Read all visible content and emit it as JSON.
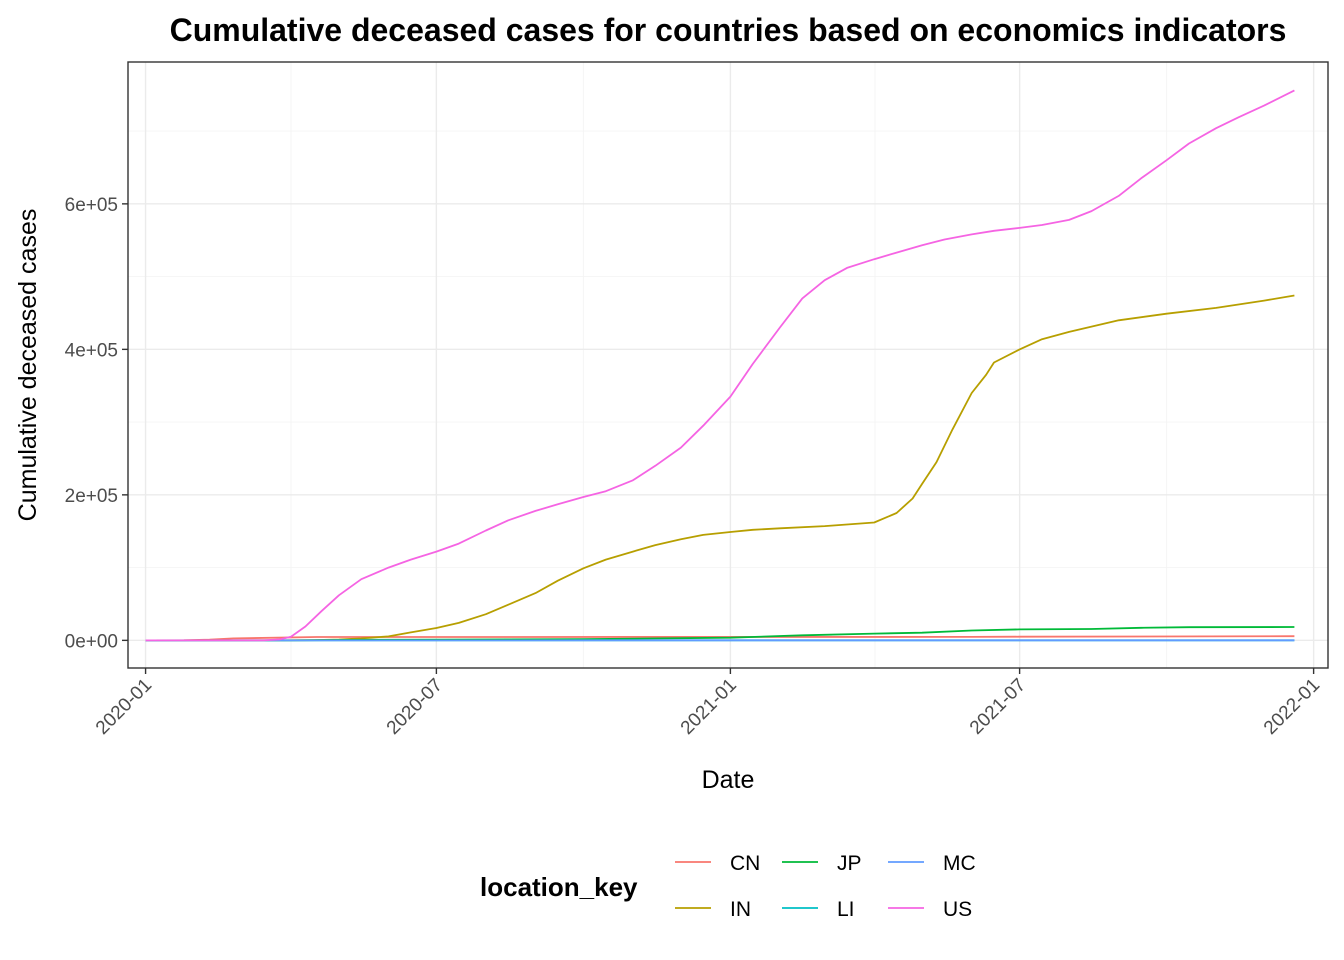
{
  "chart_data": {
    "type": "line",
    "title": "Cumulative deceased cases for countries based on economics indicators",
    "xlabel": "Date",
    "ylabel": "Cumulative deceased cases",
    "x_ticks": [
      "2020-01",
      "2020-07",
      "2021-01",
      "2021-07",
      "2022-01"
    ],
    "y_ticks": [
      {
        "value": 0,
        "label": "0e+00"
      },
      {
        "value": 200000,
        "label": "2e+05"
      },
      {
        "value": 400000,
        "label": "4e+05"
      },
      {
        "value": 600000,
        "label": "6e+05"
      }
    ],
    "xlim": [
      "2019-12-21",
      "2022-01-10"
    ],
    "ylim": [
      -38000,
      795000
    ],
    "grid": true,
    "legend": {
      "title": "location_key",
      "placement": "bottom"
    },
    "series": [
      {
        "name": "CN",
        "color": "#F8766D",
        "points": [
          [
            "2020-01-01",
            0
          ],
          [
            "2020-01-25",
            100
          ],
          [
            "2020-02-10",
            1000
          ],
          [
            "2020-02-25",
            2700
          ],
          [
            "2020-04-17",
            4600
          ],
          [
            "2021-06-01",
            4700
          ],
          [
            "2021-07-01",
            5000
          ],
          [
            "2021-12-20",
            5700
          ]
        ]
      },
      {
        "name": "IN",
        "color": "#B79F00",
        "points": [
          [
            "2020-01-01",
            0
          ],
          [
            "2020-03-25",
            0
          ],
          [
            "2020-04-15",
            400
          ],
          [
            "2020-05-01",
            1200
          ],
          [
            "2020-05-15",
            2700
          ],
          [
            "2020-06-01",
            5400
          ],
          [
            "2020-06-15",
            11000
          ],
          [
            "2020-07-01",
            17000
          ],
          [
            "2020-07-15",
            24000
          ],
          [
            "2020-08-01",
            36000
          ],
          [
            "2020-08-15",
            49000
          ],
          [
            "2020-09-01",
            65000
          ],
          [
            "2020-09-15",
            82000
          ],
          [
            "2020-10-01",
            99000
          ],
          [
            "2020-10-15",
            111000
          ],
          [
            "2020-11-01",
            122000
          ],
          [
            "2020-11-15",
            131000
          ],
          [
            "2020-12-01",
            139000
          ],
          [
            "2020-12-15",
            145000
          ],
          [
            "2021-01-01",
            149000
          ],
          [
            "2021-01-15",
            152000
          ],
          [
            "2021-02-01",
            154000
          ],
          [
            "2021-03-01",
            157000
          ],
          [
            "2021-04-01",
            162000
          ],
          [
            "2021-04-15",
            175000
          ],
          [
            "2021-04-25",
            195000
          ],
          [
            "2021-05-01",
            215000
          ],
          [
            "2021-05-10",
            245000
          ],
          [
            "2021-05-20",
            290000
          ],
          [
            "2021-06-01",
            340000
          ],
          [
            "2021-06-10",
            365000
          ],
          [
            "2021-06-15",
            382000
          ],
          [
            "2021-07-01",
            400000
          ],
          [
            "2021-07-15",
            414000
          ],
          [
            "2021-08-01",
            424000
          ],
          [
            "2021-09-01",
            440000
          ],
          [
            "2021-10-01",
            449000
          ],
          [
            "2021-11-01",
            457000
          ],
          [
            "2021-12-01",
            467000
          ],
          [
            "2021-12-20",
            474000
          ]
        ]
      },
      {
        "name": "JP",
        "color": "#00BA38",
        "points": [
          [
            "2020-01-01",
            0
          ],
          [
            "2020-04-01",
            60
          ],
          [
            "2020-05-15",
            700
          ],
          [
            "2020-07-01",
            1000
          ],
          [
            "2020-10-01",
            1700
          ],
          [
            "2021-01-01",
            3600
          ],
          [
            "2021-02-15",
            7000
          ],
          [
            "2021-04-01",
            9300
          ],
          [
            "2021-05-01",
            10500
          ],
          [
            "2021-06-01",
            13500
          ],
          [
            "2021-07-01",
            15000
          ],
          [
            "2021-08-15",
            15600
          ],
          [
            "2021-09-15",
            17300
          ],
          [
            "2021-10-15",
            18100
          ],
          [
            "2021-12-20",
            18400
          ]
        ]
      },
      {
        "name": "LI",
        "color": "#00BFC4",
        "points": [
          [
            "2020-01-01",
            0
          ],
          [
            "2020-06-01",
            1
          ],
          [
            "2021-01-01",
            50
          ],
          [
            "2021-12-20",
            70
          ]
        ]
      },
      {
        "name": "MC",
        "color": "#619CFF",
        "points": [
          [
            "2020-01-01",
            0
          ],
          [
            "2020-06-01",
            4
          ],
          [
            "2021-01-01",
            20
          ],
          [
            "2021-12-20",
            35
          ]
        ]
      },
      {
        "name": "US",
        "color": "#F564E3",
        "points": [
          [
            "2020-01-01",
            0
          ],
          [
            "2020-03-15",
            50
          ],
          [
            "2020-03-25",
            1300
          ],
          [
            "2020-04-01",
            5000
          ],
          [
            "2020-04-10",
            19000
          ],
          [
            "2020-04-20",
            40000
          ],
          [
            "2020-05-01",
            62000
          ],
          [
            "2020-05-15",
            84000
          ],
          [
            "2020-06-01",
            100000
          ],
          [
            "2020-06-15",
            111000
          ],
          [
            "2020-07-01",
            122000
          ],
          [
            "2020-07-15",
            133000
          ],
          [
            "2020-08-01",
            151000
          ],
          [
            "2020-08-15",
            165000
          ],
          [
            "2020-09-01",
            178000
          ],
          [
            "2020-09-15",
            187000
          ],
          [
            "2020-10-01",
            197000
          ],
          [
            "2020-10-15",
            205000
          ],
          [
            "2020-11-01",
            220000
          ],
          [
            "2020-11-15",
            240000
          ],
          [
            "2020-12-01",
            265000
          ],
          [
            "2020-12-15",
            295000
          ],
          [
            "2021-01-01",
            335000
          ],
          [
            "2021-01-15",
            380000
          ],
          [
            "2021-02-01",
            430000
          ],
          [
            "2021-02-15",
            470000
          ],
          [
            "2021-03-01",
            495000
          ],
          [
            "2021-03-15",
            512000
          ],
          [
            "2021-04-01",
            524000
          ],
          [
            "2021-04-15",
            533000
          ],
          [
            "2021-05-01",
            543000
          ],
          [
            "2021-05-15",
            551000
          ],
          [
            "2021-06-01",
            558000
          ],
          [
            "2021-06-15",
            563000
          ],
          [
            "2021-07-01",
            567000
          ],
          [
            "2021-07-15",
            571000
          ],
          [
            "2021-08-01",
            578000
          ],
          [
            "2021-08-15",
            590000
          ],
          [
            "2021-09-01",
            611000
          ],
          [
            "2021-09-15",
            635000
          ],
          [
            "2021-10-01",
            660000
          ],
          [
            "2021-10-15",
            683000
          ],
          [
            "2021-11-01",
            704000
          ],
          [
            "2021-11-15",
            719000
          ],
          [
            "2021-12-01",
            735000
          ],
          [
            "2021-12-20",
            756000
          ]
        ]
      }
    ]
  }
}
